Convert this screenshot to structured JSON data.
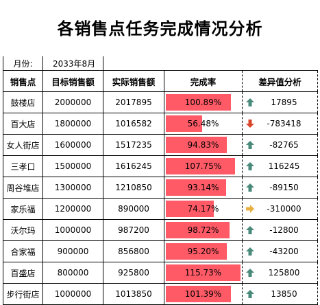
{
  "title": "各销售点任务完成情况分析",
  "month_label": "月份:",
  "month_value": "2033年8月",
  "headers": [
    "销售点",
    "目标销售额",
    "实际销售额",
    "完成率",
    "差异值分析"
  ],
  "colors": {
    "bar": "#ff5a66",
    "up": "#4a8a7a",
    "down": "#d8452a",
    "flat": "#e8b040"
  },
  "rows": [
    {
      "store": "鼓楼店",
      "target": "2000000",
      "actual": "2017895",
      "rate_text": "100.89%",
      "rate": 1.0089,
      "diff": "17895",
      "trend": "up"
    },
    {
      "store": "百大店",
      "target": "1800000",
      "actual": "1016582",
      "rate_text": "56.48%",
      "rate": 0.5648,
      "diff": "-783418",
      "trend": "down"
    },
    {
      "store": "女人街店",
      "target": "1600000",
      "actual": "1517235",
      "rate_text": "94.83%",
      "rate": 0.9483,
      "diff": "-82765",
      "trend": "up"
    },
    {
      "store": "三孝口",
      "target": "1500000",
      "actual": "1616245",
      "rate_text": "107.75%",
      "rate": 1.0775,
      "diff": "116245",
      "trend": "up"
    },
    {
      "store": "周谷堆店",
      "target": "1300000",
      "actual": "1210850",
      "rate_text": "93.14%",
      "rate": 0.9314,
      "diff": "-89150",
      "trend": "up"
    },
    {
      "store": "家乐福",
      "target": "1200000",
      "actual": "890000",
      "rate_text": "74.17%",
      "rate": 0.7417,
      "diff": "-310000",
      "trend": "flat"
    },
    {
      "store": "沃尔玛",
      "target": "1000000",
      "actual": "987200",
      "rate_text": "98.72%",
      "rate": 0.9872,
      "diff": "-12800",
      "trend": "up"
    },
    {
      "store": "合家福",
      "target": "900000",
      "actual": "856800",
      "rate_text": "95.20%",
      "rate": 0.952,
      "diff": "-43200",
      "trend": "up"
    },
    {
      "store": "百盛店",
      "target": "800000",
      "actual": "925800",
      "rate_text": "115.73%",
      "rate": 1.1573,
      "diff": "125800",
      "trend": "up"
    },
    {
      "store": "步行街店",
      "target": "1000000",
      "actual": "1013850",
      "rate_text": "101.39%",
      "rate": 1.0139,
      "diff": "13850",
      "trend": "up"
    }
  ]
}
